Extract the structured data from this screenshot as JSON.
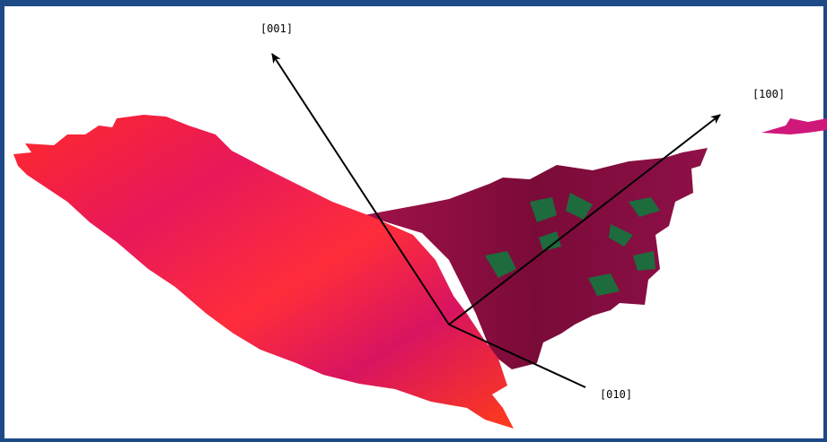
{
  "axes": {
    "c": {
      "label": "[001]"
    },
    "a": {
      "label": "[100]"
    },
    "b": {
      "label": "[010]"
    }
  }
}
